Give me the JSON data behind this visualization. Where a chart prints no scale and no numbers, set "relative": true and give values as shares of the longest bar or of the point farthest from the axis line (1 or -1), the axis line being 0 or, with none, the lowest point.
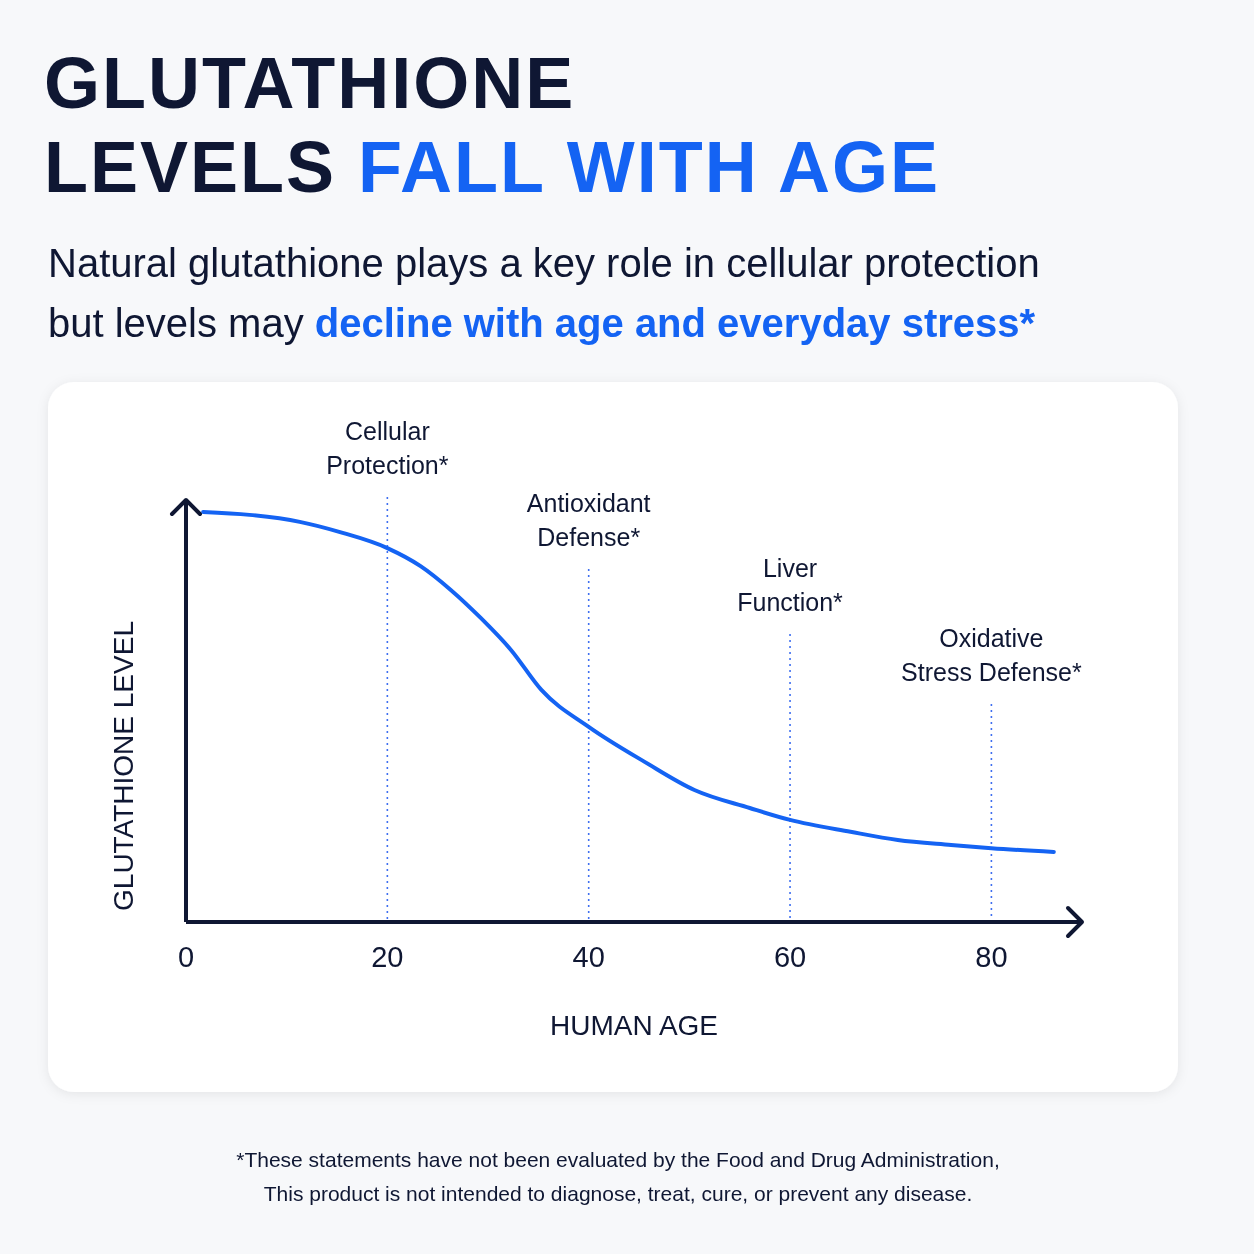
{
  "chart_data": {
    "type": "line",
    "title": "GLUTATHIONE LEVELS FALL WITH AGE",
    "subtitle": "Natural glutathione plays a key role in cellular protection but levels may decline with age and everyday stress*",
    "xlabel": "HUMAN AGE",
    "ylabel": "GLUTATHIONE LEVEL",
    "relative": true,
    "tick_labels": "x",
    "xlim": [
      0,
      89
    ],
    "xticks": [
      0,
      20,
      40,
      60,
      80
    ],
    "series": [
      {
        "color": "#1463f3",
        "x": [
          1.7,
          6.3,
          11.3,
          15.3,
          20,
          23.3,
          26.3,
          29.3,
          32.3,
          35.3,
          40,
          45.6,
          50.5,
          56,
          60,
          66,
          70.7,
          76,
          80,
          86.2
        ],
        "values": [
          1.0,
          0.993,
          0.976,
          0.951,
          0.912,
          0.868,
          0.81,
          0.741,
          0.663,
          0.566,
          0.476,
          0.39,
          0.322,
          0.278,
          0.249,
          0.22,
          0.2,
          0.188,
          0.18,
          0.171
        ]
      }
    ],
    "ref_lines": [
      {
        "axis": "x",
        "value": 20,
        "label": "Cellular\nProtection*",
        "color": "#3f6ff0",
        "line_style": "dotted"
      },
      {
        "axis": "x",
        "value": 40,
        "label": "Antioxidant\nDefense*",
        "color": "#3f6ff0",
        "line_style": "dotted"
      },
      {
        "axis": "x",
        "value": 60,
        "label": "Liver\nFunction*",
        "color": "#3f6ff0",
        "line_style": "dotted"
      },
      {
        "axis": "x",
        "value": 80,
        "label": "Oxidative\nStress Defense*",
        "color": "#3f6ff0",
        "line_style": "dotted"
      }
    ],
    "annotations": [
      "*These statements have not been evaluated by the Food and Drug Administration,",
      "This product is not intended to diagnose, treat, cure, or prevent any disease."
    ]
  }
}
